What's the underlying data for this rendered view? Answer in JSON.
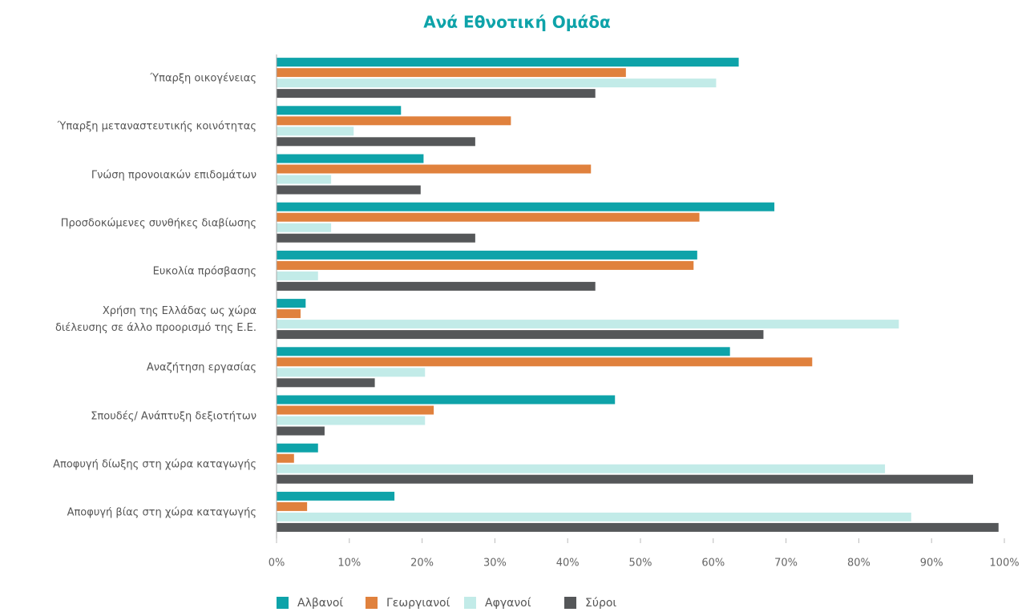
{
  "chart_data": {
    "type": "bar",
    "orientation": "horizontal",
    "title": "Ανά Εθνοτική Ομάδα",
    "categories": [
      "Ύπαρξη οικογένειας",
      "Ύπαρξη μεταναστευτικής κοινότητας",
      "Γνώση προνοιακών επιδομάτων",
      "Προσδοκώμενες συνθήκες διαβίωσης",
      "Ευκολία πρόσβασης",
      "Χρήση της Ελλάδας ως χώρα\nδιέλευσης σε άλλο προορισμό της Ε.Ε.",
      "Αναζήτηση εργασίας",
      "Σπουδές/ Ανάπτυξη δεξιοτήτων",
      "Αποφυγή  δίωξης στη χώρα καταγωγής",
      "Αποφυγή  βίας στη χώρα καταγωγής"
    ],
    "series": [
      {
        "name": "Αλβανοί",
        "color": "#0ea3a9",
        "values": [
          63.5,
          17.1,
          20.2,
          68.4,
          57.8,
          4.0,
          62.3,
          46.5,
          5.7,
          16.2
        ]
      },
      {
        "name": "Γεωργιανοί",
        "color": "#e0813d",
        "values": [
          48.0,
          32.2,
          43.2,
          58.1,
          57.3,
          3.3,
          73.6,
          21.6,
          2.4,
          4.2
        ]
      },
      {
        "name": "Αφγανοί",
        "color": "#c2ebe8",
        "values": [
          60.4,
          10.6,
          7.5,
          7.5,
          5.7,
          85.5,
          20.4,
          20.4,
          83.6,
          87.2
        ]
      },
      {
        "name": "Σύροι",
        "color": "#555759",
        "values": [
          43.8,
          27.3,
          19.8,
          27.3,
          43.8,
          66.9,
          13.5,
          6.6,
          95.7,
          99.2
        ]
      }
    ],
    "xlim": [
      0,
      100
    ],
    "xticks": [
      {
        "value": 0,
        "label": "0%"
      },
      {
        "value": 10,
        "label": "10%"
      },
      {
        "value": 20,
        "label": "20%"
      },
      {
        "value": 30,
        "label": "30%"
      },
      {
        "value": 40,
        "label": "40%"
      },
      {
        "value": 50,
        "label": "50%"
      },
      {
        "value": 60,
        "label": "60%"
      },
      {
        "value": 70,
        "label": "70%"
      },
      {
        "value": 80,
        "label": "80%"
      },
      {
        "value": 90,
        "label": "90%"
      },
      {
        "value": 100,
        "label": "100%"
      }
    ],
    "legend": "bottom"
  }
}
